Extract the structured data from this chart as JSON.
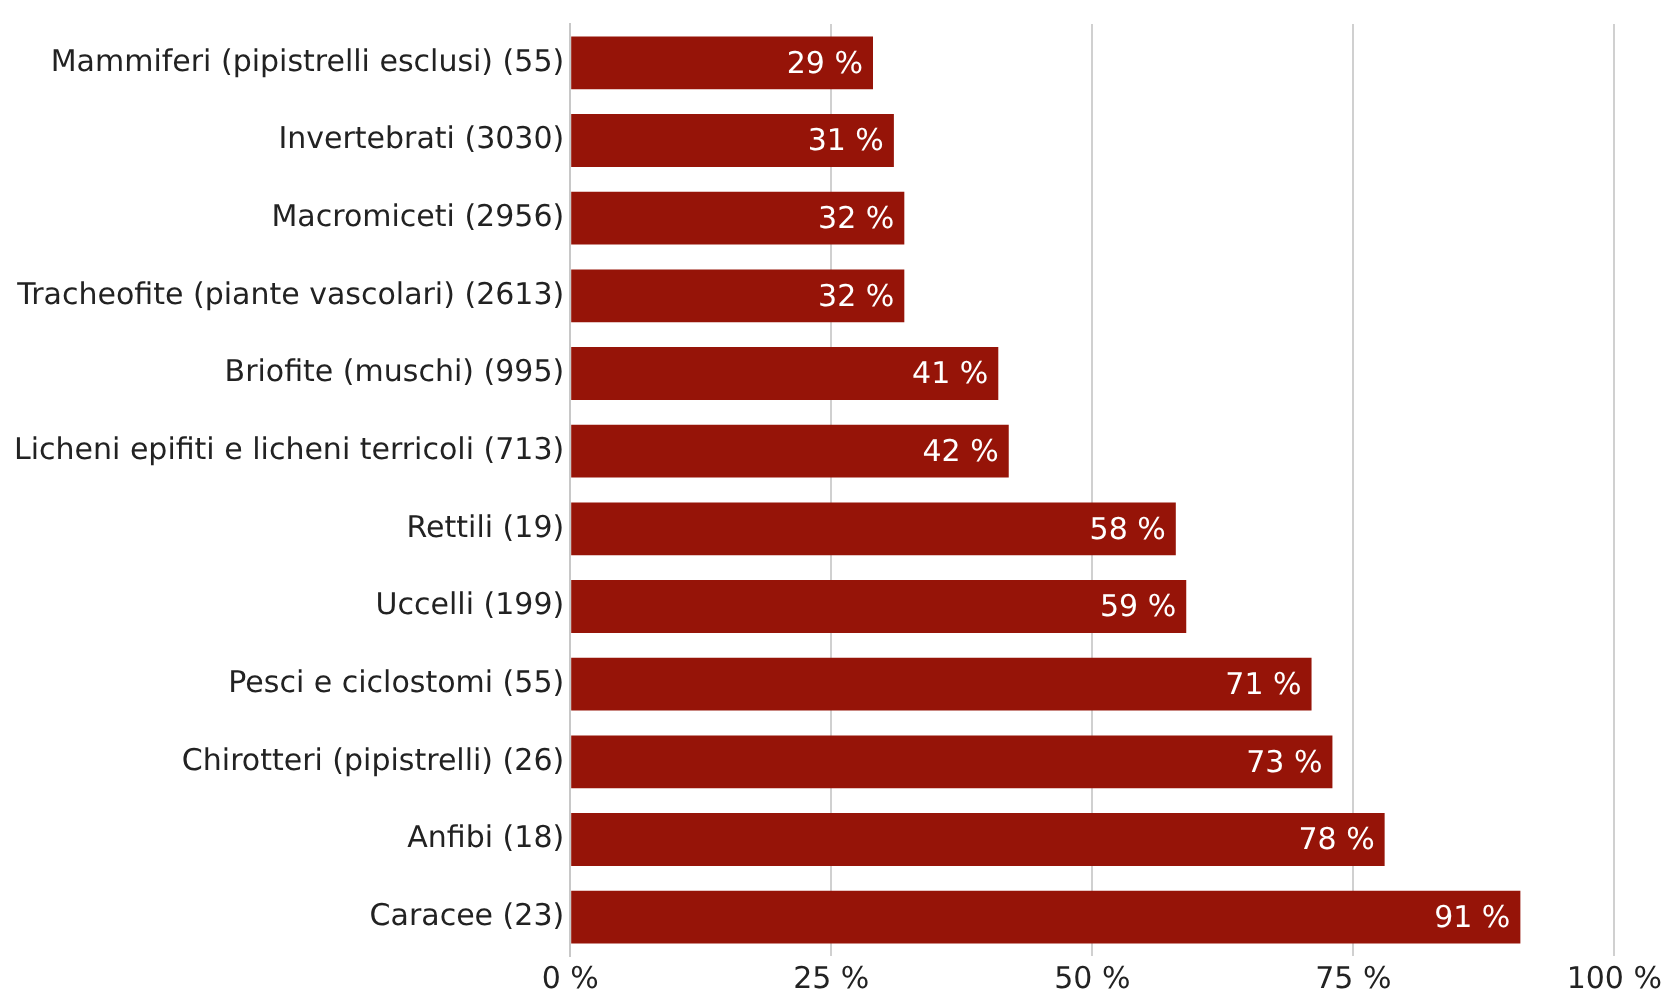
{
  "chart_data": {
    "type": "bar",
    "orientation": "horizontal",
    "categories": [
      "Mammiferi (pipistrelli esclusi) (55)",
      "Invertebrati (3030)",
      "Macromiceti (2956)",
      "Tracheofite (piante vascolari) (2613)",
      "Briofite (muschi) (995)",
      "Licheni epifiti e licheni terricoli (713)",
      "Rettili (19)",
      "Uccelli (199)",
      "Pesci e ciclostomi (55)",
      "Chirotteri (pipistrelli) (26)",
      "Anfibi (18)",
      "Caracee (23)"
    ],
    "values": [
      29,
      31,
      32,
      32,
      41,
      42,
      58,
      59,
      71,
      73,
      78,
      91
    ],
    "value_labels": [
      "29 %",
      "31 %",
      "32 %",
      "32 %",
      "41 %",
      "42 %",
      "58 %",
      "59 %",
      "71 %",
      "73 %",
      "78 %",
      "91 %"
    ],
    "color": "#961408",
    "xlim": [
      0,
      100
    ],
    "xticks": [
      {
        "value": 0,
        "label": "0 %"
      },
      {
        "value": 25,
        "label": "25 %"
      },
      {
        "value": 50,
        "label": "50 %"
      },
      {
        "value": 75,
        "label": "75 %"
      },
      {
        "value": 100,
        "label": "100 %"
      }
    ],
    "grid": "x",
    "legend": false
  }
}
